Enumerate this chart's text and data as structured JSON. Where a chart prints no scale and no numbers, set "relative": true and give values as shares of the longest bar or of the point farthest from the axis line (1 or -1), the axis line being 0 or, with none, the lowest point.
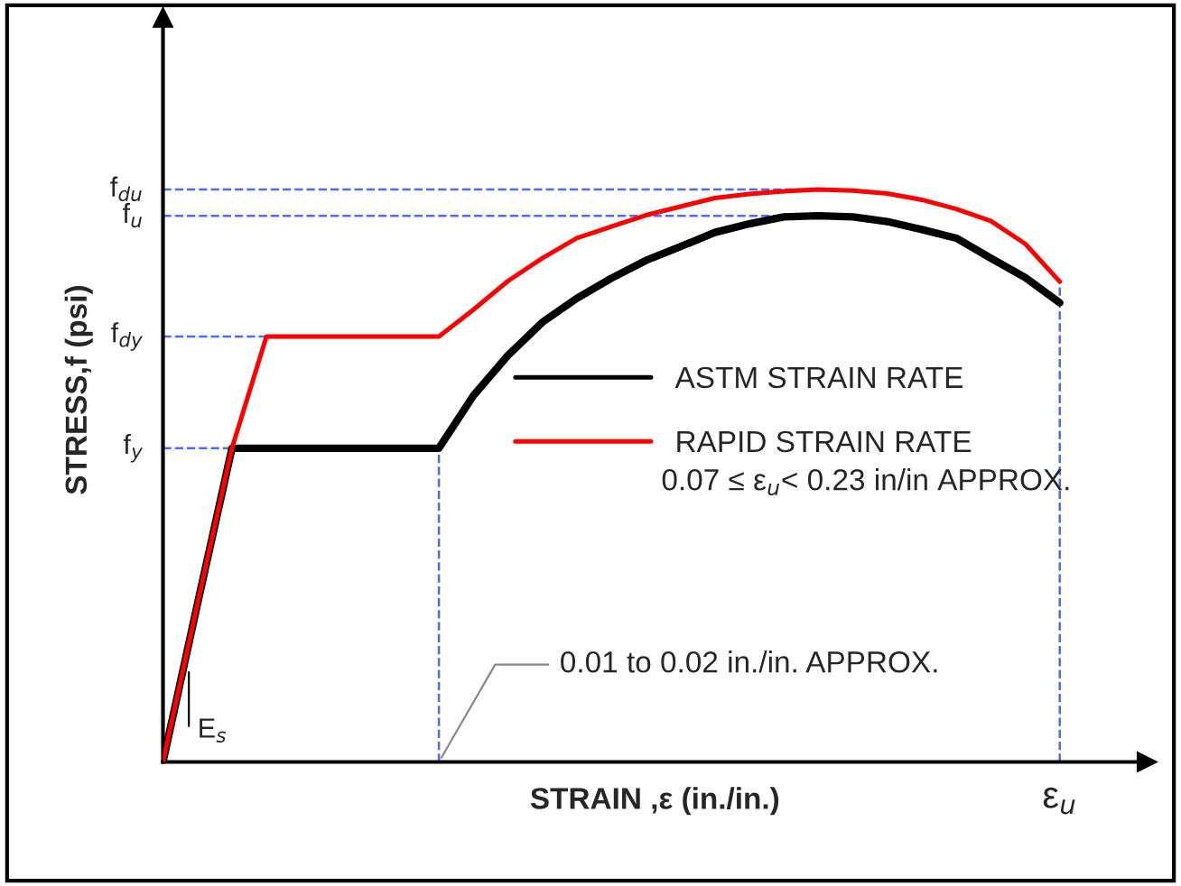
{
  "chart_data": {
    "type": "line",
    "relative": true,
    "xlabel": "STRAIN ,ε (in./in.)",
    "ylabel": "STRESS,f (psi)",
    "categories": [
      null,
      null,
      null,
      null,
      null,
      null,
      null,
      null,
      null,
      null,
      null,
      null,
      null,
      null,
      null,
      null,
      null,
      null,
      null,
      null,
      null,
      null,
      null,
      null,
      null,
      null,
      null
    ],
    "series": [
      {
        "name": "ASTM STRAIN RATE",
        "color": "#000000",
        "values": [
          0,
          0.276,
          0.548,
          0.548,
          0.548,
          0.548,
          0.548,
          0.548,
          0.548,
          0.64,
          0.71,
          0.768,
          0.81,
          0.845,
          0.876,
          0.9,
          0.925,
          0.94,
          0.952,
          0.954,
          0.952,
          0.944,
          0.93,
          0.915,
          0.88,
          0.846,
          0.802
        ]
      },
      {
        "name": "RAPID STRAIN RATE",
        "color": "#ff0000",
        "values": [
          0,
          0.276,
          0.548,
          0.743,
          0.743,
          0.743,
          0.743,
          0.743,
          0.743,
          0.79,
          0.84,
          0.88,
          0.915,
          0.935,
          0.955,
          0.97,
          0.985,
          0.992,
          0.997,
          1.0,
          0.998,
          0.993,
          0.982,
          0.966,
          0.945,
          0.905,
          0.839
        ]
      }
    ],
    "ref_lines": [
      {
        "axis": "y",
        "value": 1.0,
        "label": "f$_{du}$",
        "color": "#4d6bff",
        "line_style": "dashed"
      },
      {
        "axis": "y",
        "value": 0.954,
        "label": "f$_{u}$",
        "color": "#4d6bff",
        "line_style": "dashed"
      },
      {
        "axis": "y",
        "value": 0.743,
        "label": "f$_{dy}$",
        "color": "#4d6bff",
        "line_style": "dashed"
      },
      {
        "axis": "y",
        "value": 0.548,
        "label": "f$_{y}$",
        "color": "#4d6bff",
        "line_style": "dashed"
      }
    ],
    "annotations": [
      "E$_{s}$",
      "0.01 to 0.02 in./in. APPROX.",
      "0.07 ≤ ε$_{u}$< 0.23 in/in APPROX.",
      "ε$_{u}$"
    ],
    "legend": "center right",
    "line_style": "solid",
    "marker": "none"
  }
}
